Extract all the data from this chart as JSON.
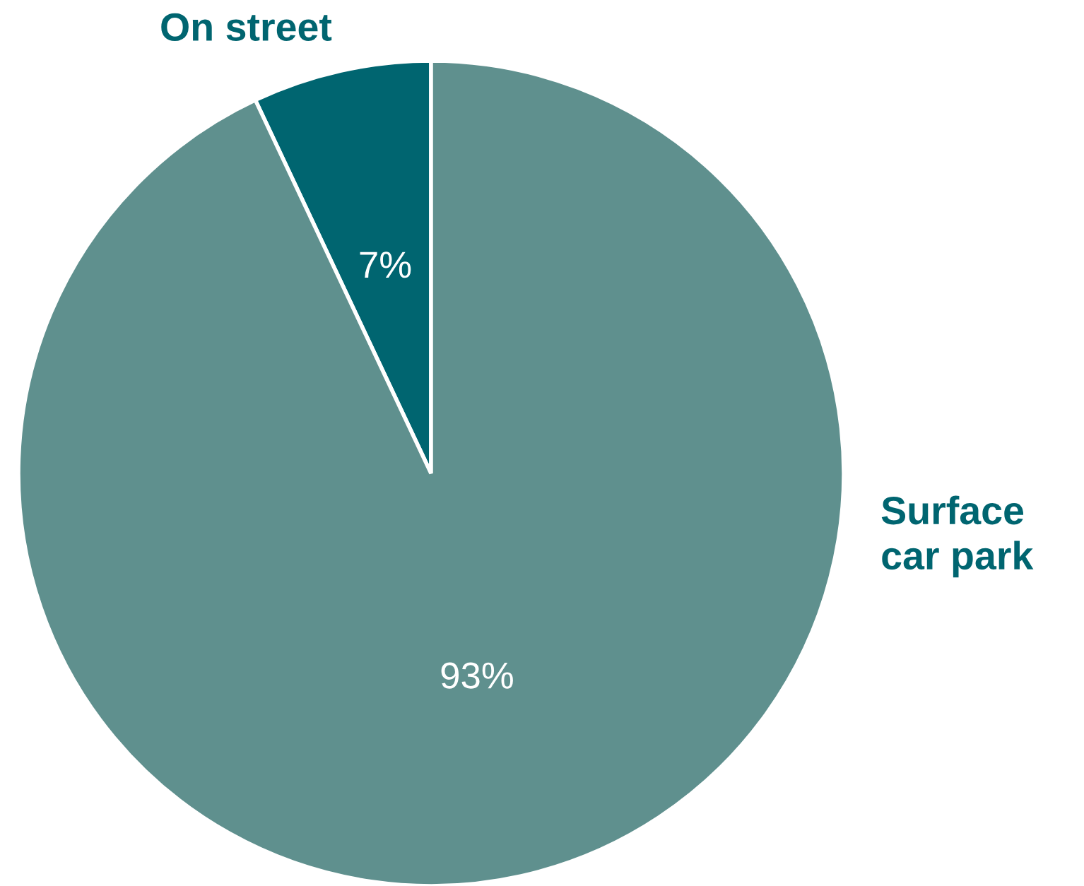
{
  "chart_data": {
    "type": "pie",
    "categories": [
      "On street",
      "Surface\ncar park"
    ],
    "values": [
      7,
      93
    ],
    "colors": [
      "#006570",
      "#5f908e"
    ],
    "value_labels": [
      "7%",
      "93%"
    ],
    "legend": false
  }
}
